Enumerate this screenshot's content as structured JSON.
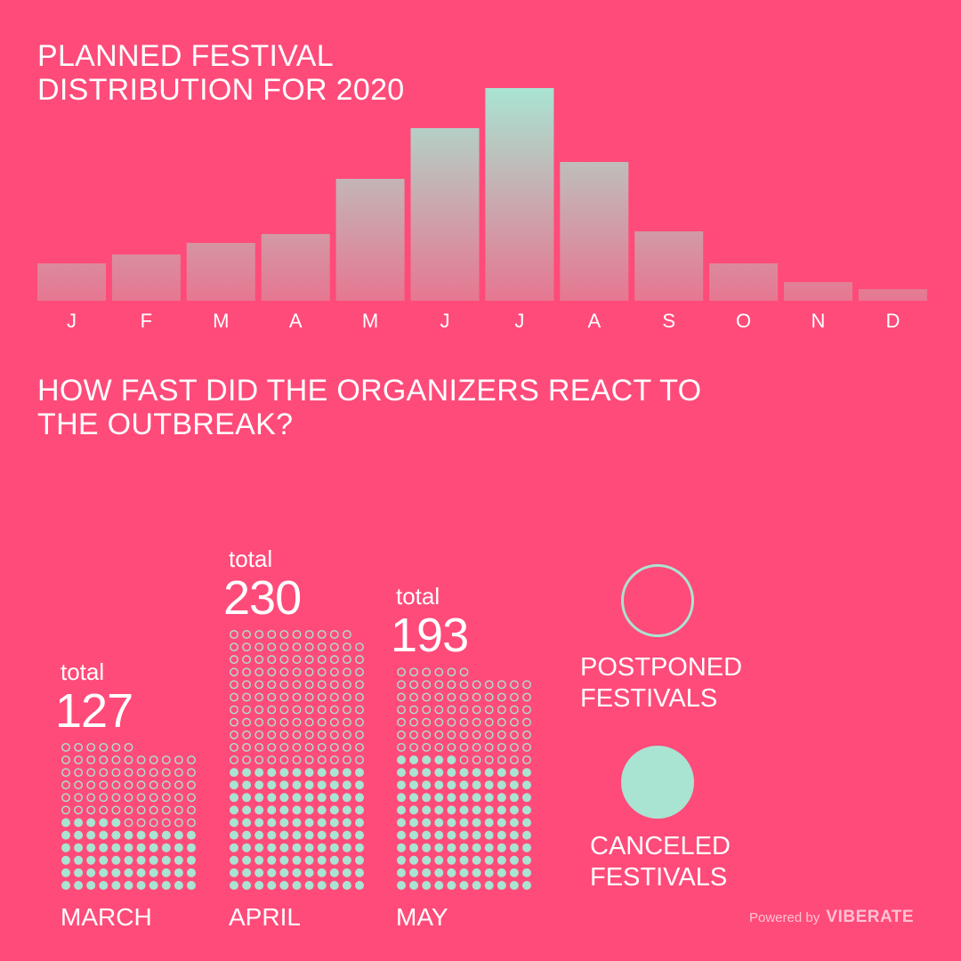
{
  "colors": {
    "background": "#ff4b7a",
    "accent": "#a9e4d2",
    "muted_bar": "#e67791",
    "text": "#ffffff",
    "credit": "#ffc2d2"
  },
  "title_top": [
    "PLANNED FESTIVAL",
    "DISTRIBUTION FOR 2020"
  ],
  "title_bottom": [
    "HOW FAST DID THE ORGANIZERS REACT TO",
    "THE OUTBREAK?"
  ],
  "legend": {
    "postponed": [
      "POSTPONED",
      "FESTIVALS"
    ],
    "canceled": [
      "CANCELED",
      "FESTIVALS"
    ]
  },
  "credit": {
    "prefix": "Powered by",
    "brand": "VIBERATE"
  },
  "chart_data": [
    {
      "type": "bar",
      "title": "PLANNED FESTIVAL DISTRIBUTION FOR 2020",
      "categories": [
        "J",
        "F",
        "M",
        "A",
        "M",
        "J",
        "J",
        "A",
        "S",
        "O",
        "N",
        "D"
      ],
      "values": [
        42,
        52,
        65,
        75,
        137,
        194,
        239,
        156,
        78,
        42,
        21,
        13
      ],
      "ylim": [
        0,
        239
      ],
      "grid": false,
      "legend": "none"
    },
    {
      "type": "bar",
      "title": "HOW FAST DID THE ORGANIZERS REACT TO THE OUTBREAK?",
      "categories": [
        "MARCH",
        "APRIL",
        "MAY"
      ],
      "total_label": "total",
      "totals": [
        127,
        230,
        193
      ],
      "series": [
        {
          "name": "POSTPONED FESTIVALS",
          "values": [
            67,
            120,
            78
          ]
        },
        {
          "name": "CANCELED FESTIVALS",
          "values": [
            60,
            110,
            115
          ]
        }
      ],
      "legend": "right"
    }
  ]
}
